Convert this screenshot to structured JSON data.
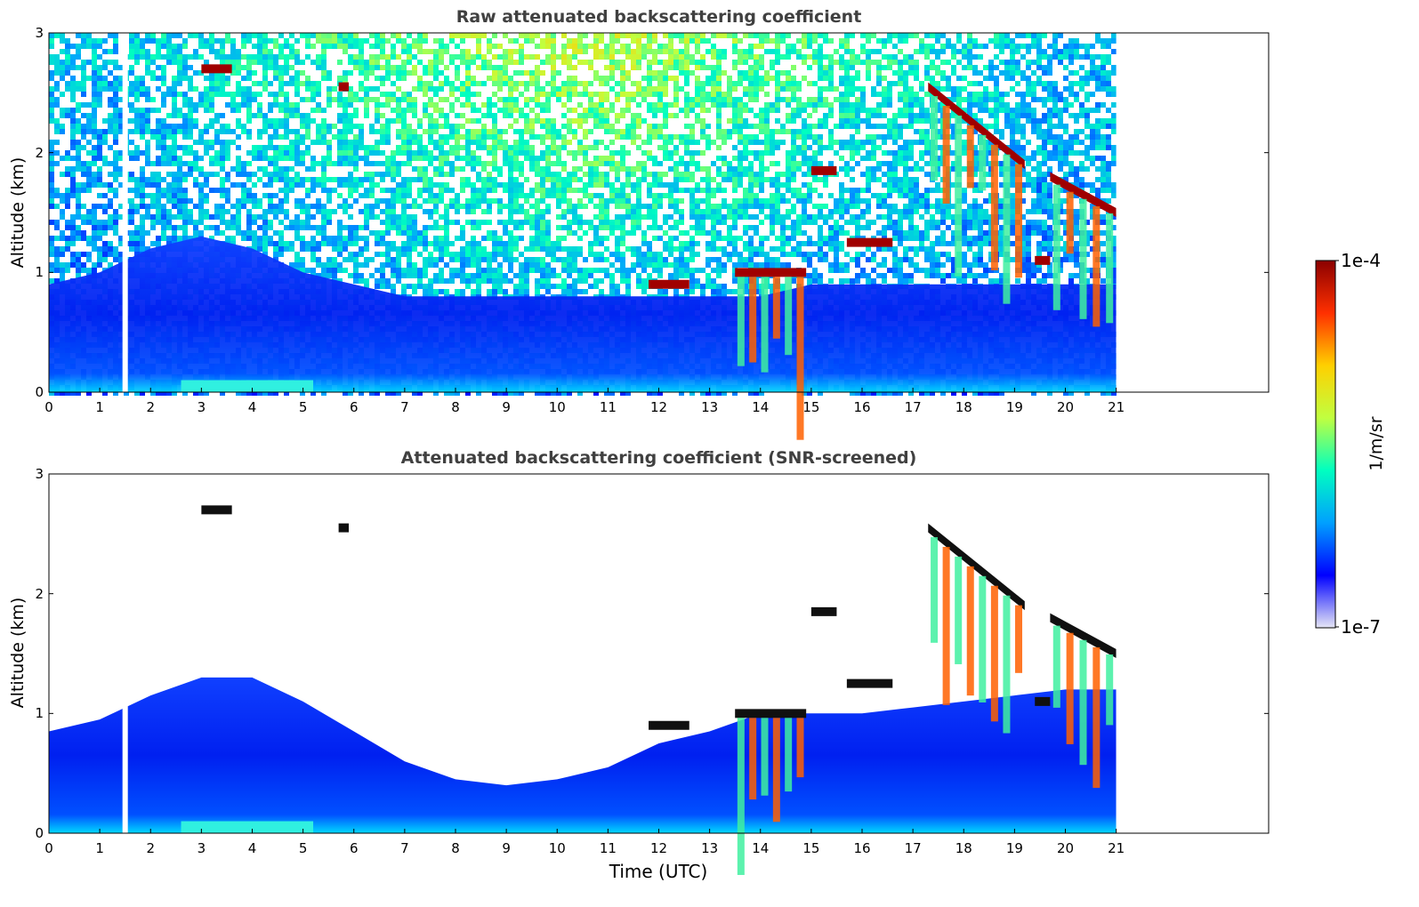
{
  "chart_data": [
    {
      "type": "heatmap",
      "title": "Raw attenuated backscattering coefficient",
      "ylabel": "Altitude (km)",
      "xlabel": "",
      "xlim": [
        0,
        24
      ],
      "ylim": [
        0,
        3
      ],
      "xticks": [
        "0",
        "1",
        "2",
        "3",
        "4",
        "5",
        "6",
        "7",
        "8",
        "9",
        "10",
        "11",
        "12",
        "13",
        "14",
        "15",
        "16",
        "17",
        "18",
        "19",
        "20",
        "21"
      ],
      "yticks": [
        "0",
        "1",
        "2",
        "3"
      ],
      "data_end_time": 21,
      "gap_time": 1.5,
      "features": [
        {
          "kind": "boundary-layer aerosol",
          "x": [
            0,
            21
          ],
          "top_km": [
            0.9,
            1.0,
            1.2,
            1.3,
            1.2,
            1.0,
            0.9,
            0.8,
            0.8,
            0.8,
            0.8,
            0.8,
            0.8,
            0.8,
            0.8,
            0.9,
            0.9,
            0.9,
            0.9,
            0.9,
            0.9,
            0.9
          ]
        },
        {
          "kind": "cloud",
          "x": [
            3.0,
            3.6
          ],
          "alt_km": 2.7
        },
        {
          "kind": "cloud",
          "x": [
            5.7,
            5.9
          ],
          "alt_km": 2.55
        },
        {
          "kind": "cloud",
          "x": [
            11.8,
            12.6
          ],
          "alt_km": 0.9
        },
        {
          "kind": "cloud",
          "x": [
            13.5,
            14.9
          ],
          "alt_km": 1.0
        },
        {
          "kind": "cloud",
          "x": [
            15.0,
            15.5
          ],
          "alt_km": 1.85
        },
        {
          "kind": "cloud",
          "x": [
            15.7,
            16.6
          ],
          "alt_km": 1.25
        },
        {
          "kind": "cloud",
          "x": [
            17.3,
            19.2
          ],
          "alt_km": [
            2.55,
            1.9
          ]
        },
        {
          "kind": "cloud",
          "x": [
            19.4,
            19.7
          ],
          "alt_km": 1.1
        },
        {
          "kind": "cloud",
          "x": [
            19.7,
            21.0
          ],
          "alt_km": [
            1.8,
            1.5
          ]
        }
      ]
    },
    {
      "type": "heatmap",
      "title": "Attenuated backscattering coefficient (SNR-screened)",
      "ylabel": "Altitude (km)",
      "xlabel": "Time (UTC)",
      "xlim": [
        0,
        24
      ],
      "ylim": [
        0,
        3
      ],
      "xticks": [
        "0",
        "1",
        "2",
        "3",
        "4",
        "5",
        "6",
        "7",
        "8",
        "9",
        "10",
        "11",
        "12",
        "13",
        "14",
        "15",
        "16",
        "17",
        "18",
        "19",
        "20",
        "21"
      ],
      "yticks": [
        "0",
        "1",
        "2",
        "3"
      ],
      "data_end_time": 21,
      "gap_time": 1.5,
      "screened_top_km": [
        0.85,
        0.95,
        1.15,
        1.3,
        1.3,
        1.1,
        0.85,
        0.6,
        0.45,
        0.4,
        0.45,
        0.55,
        0.75,
        0.85,
        1.0,
        1.0,
        1.0,
        1.05,
        1.1,
        1.15,
        1.2,
        1.2
      ]
    }
  ],
  "colorbar": {
    "label": "1/m/sr",
    "max_label": "1e-4",
    "min_label": "1e-7",
    "colors": [
      "#e6e6f5",
      "#0000ff",
      "#00a0ff",
      "#00ffc0",
      "#c0ff40",
      "#ffd000",
      "#ff3000",
      "#8b0000"
    ]
  }
}
